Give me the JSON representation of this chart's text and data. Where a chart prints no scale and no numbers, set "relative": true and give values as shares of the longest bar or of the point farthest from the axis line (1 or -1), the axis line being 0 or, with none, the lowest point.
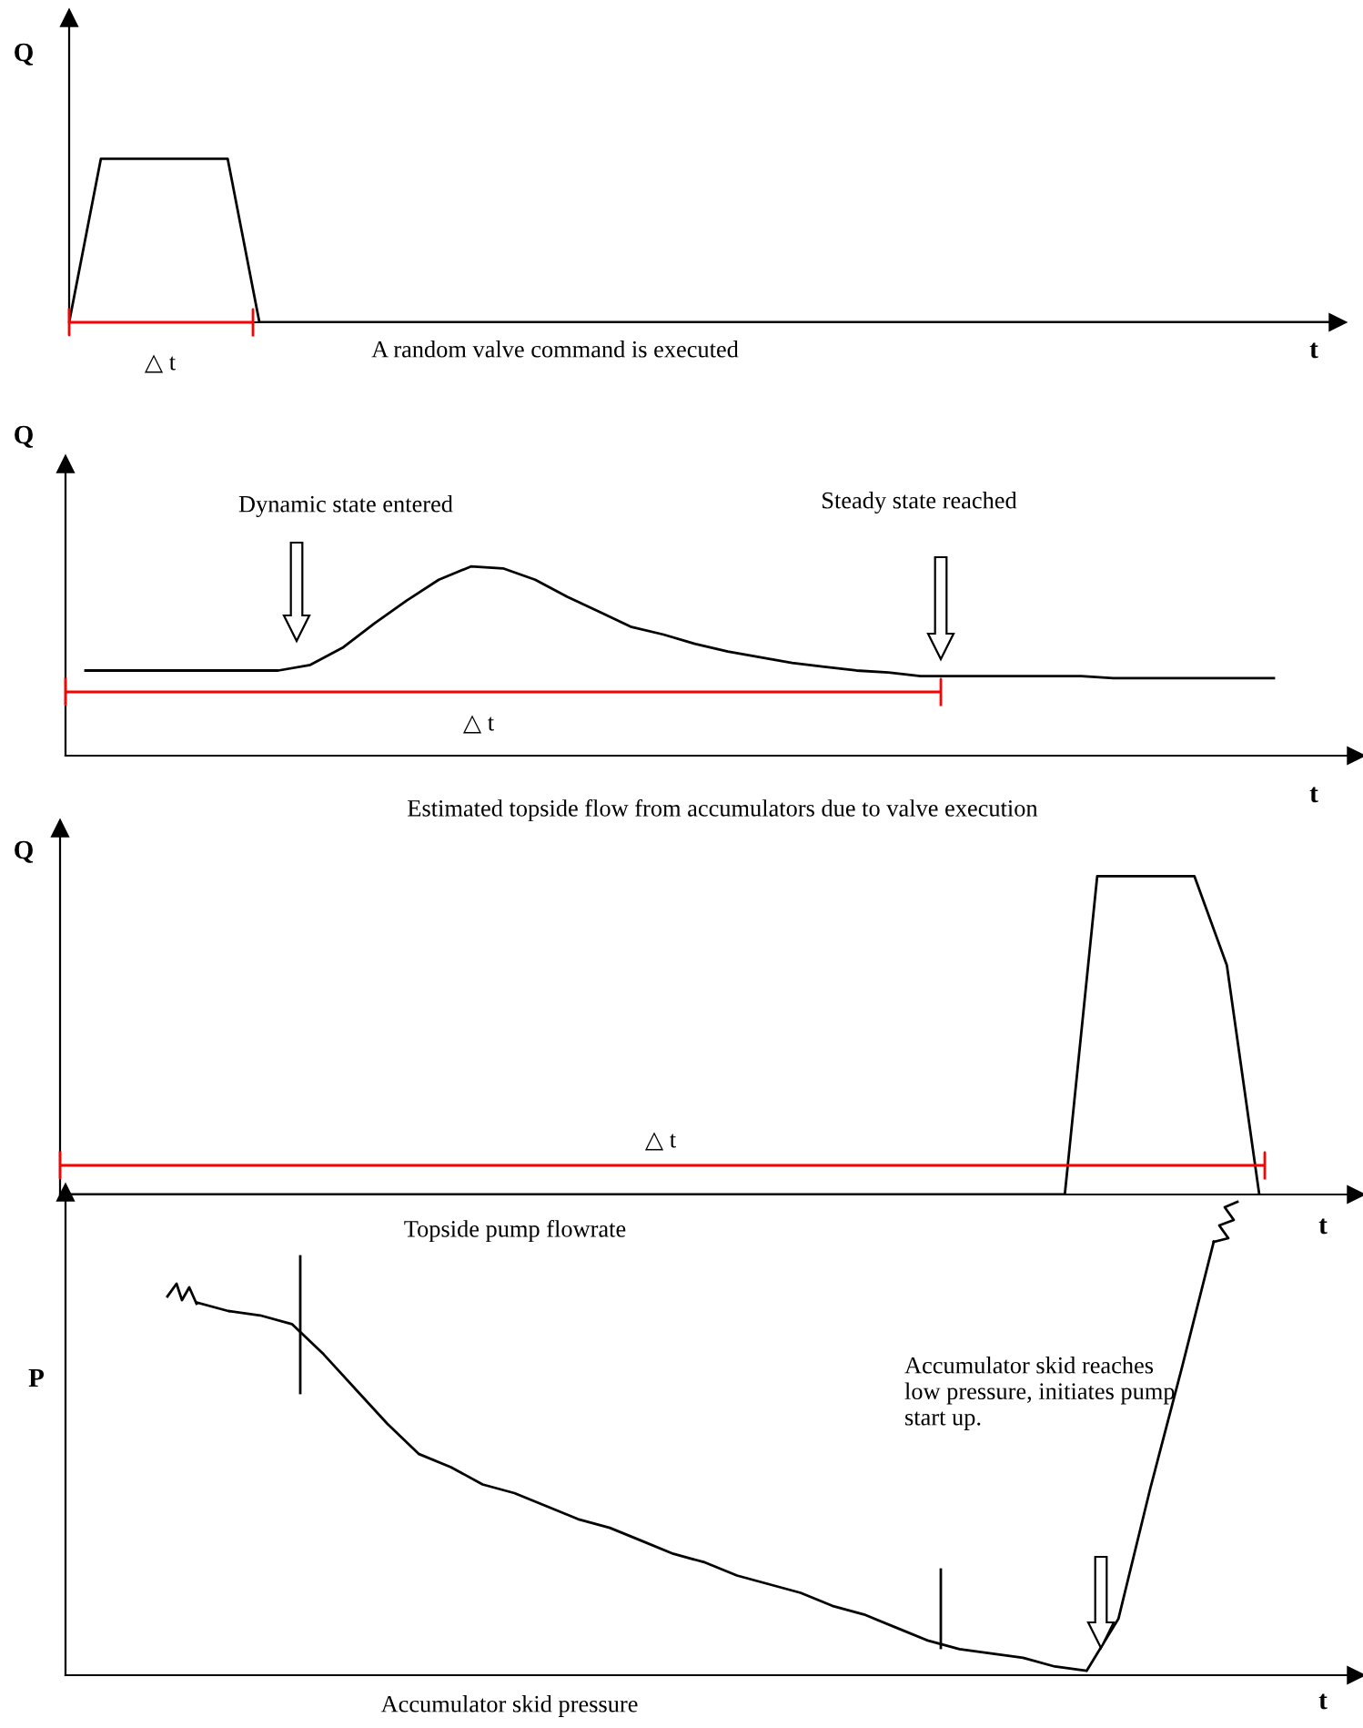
{
  "chart_data": [
    {
      "type": "line",
      "relative": true,
      "ylabel": "Q",
      "xlabel": "t",
      "line_style": "solid",
      "categories": [
        null,
        null,
        null,
        null,
        null,
        null,
        null,
        null,
        null,
        null,
        null,
        null,
        null,
        null,
        null,
        null,
        null,
        null,
        null,
        null,
        null,
        null,
        null,
        null,
        null,
        null,
        null,
        null,
        null,
        null,
        null,
        null,
        null,
        null,
        null,
        null,
        null,
        null,
        null,
        null,
        null
      ],
      "series": [
        {
          "color": "#000000",
          "values": [
            0,
            1,
            1,
            1,
            1,
            1,
            0,
            0,
            0,
            0,
            0,
            0,
            0,
            0,
            0,
            0,
            0,
            0,
            0,
            0,
            0,
            0,
            0,
            0,
            0,
            0,
            0,
            0,
            0,
            0,
            0,
            0,
            0,
            0,
            0,
            0,
            0,
            0,
            0,
            0,
            0
          ]
        }
      ],
      "annotations": [
        "△ t",
        "A random valve command is executed"
      ]
    },
    {
      "type": "line",
      "relative": true,
      "ylabel": "Q",
      "xlabel": "t",
      "line_style": "solid",
      "categories": [
        null,
        null,
        null,
        null,
        null,
        null,
        null,
        null,
        null,
        null,
        null,
        null,
        null,
        null,
        null,
        null,
        null,
        null,
        null,
        null,
        null,
        null,
        null,
        null,
        null,
        null,
        null,
        null,
        null,
        null,
        null,
        null,
        null,
        null,
        null,
        null,
        null,
        null
      ],
      "series": [
        {
          "color": "#000000",
          "values": [
            0.45,
            0.45,
            0.45,
            0.45,
            0.45,
            0.45,
            0.45,
            0.48,
            0.57,
            0.7,
            0.82,
            0.93,
            1,
            0.99,
            0.93,
            0.84,
            0.76,
            0.68,
            0.64,
            0.59,
            0.55,
            0.52,
            0.49,
            0.47,
            0.45,
            0.44,
            0.42,
            0.42,
            0.42,
            0.42,
            0.42,
            0.42,
            0.41,
            0.41,
            0.41,
            0.41,
            0.41,
            0.41
          ]
        }
      ],
      "annotations": [
        "Dynamic state entered",
        "Steady state reached",
        "△ t",
        "Estimated topside flow from accumulators due to valve execution"
      ]
    },
    {
      "type": "line",
      "relative": true,
      "ylabel": "Q",
      "xlabel": "t",
      "line_style": "solid",
      "categories": [
        null,
        null,
        null,
        null,
        null,
        null,
        null,
        null,
        null,
        null,
        null,
        null,
        null,
        null,
        null,
        null,
        null,
        null,
        null,
        null,
        null,
        null,
        null,
        null,
        null,
        null,
        null,
        null,
        null,
        null,
        null,
        null,
        null,
        null,
        null,
        null,
        null,
        null
      ],
      "series": [
        {
          "color": "#000000",
          "values": [
            0,
            0,
            0,
            0,
            0,
            0,
            0,
            0,
            0,
            0,
            0,
            0,
            0,
            0,
            0,
            0,
            0,
            0,
            0,
            0,
            0,
            0,
            0,
            0,
            0,
            0,
            0,
            0,
            0,
            0,
            0,
            0,
            1,
            1,
            1,
            1,
            0.72,
            0
          ]
        }
      ],
      "annotations": [
        "△ t",
        "Topside pump flowrate"
      ]
    },
    {
      "type": "line",
      "relative": true,
      "ylabel": "P",
      "xlabel": "t",
      "line_style": "solid",
      "categories": [
        null,
        null,
        null,
        null,
        null,
        null,
        null,
        null,
        null,
        null,
        null,
        null,
        null,
        null,
        null,
        null,
        null,
        null,
        null,
        null,
        null,
        null,
        null,
        null,
        null,
        null,
        null,
        null,
        null,
        null,
        null,
        null,
        null
      ],
      "series": [
        {
          "color": "#000000",
          "values": [
            0.86,
            0.84,
            0.83,
            0.81,
            0.74,
            0.66,
            0.58,
            0.51,
            0.48,
            0.44,
            0.42,
            0.39,
            0.36,
            0.34,
            0.31,
            0.28,
            0.26,
            0.23,
            0.21,
            0.19,
            0.16,
            0.14,
            0.11,
            0.08,
            0.06,
            0.05,
            0.04,
            0.02,
            0.01,
            0.13,
            0.43,
            0.71,
            1
          ]
        }
      ],
      "annotations": [
        "Accumulator skid reaches\nlow pressure, initiates pump\nstart up.",
        "Accumulator skid pressure"
      ]
    }
  ]
}
